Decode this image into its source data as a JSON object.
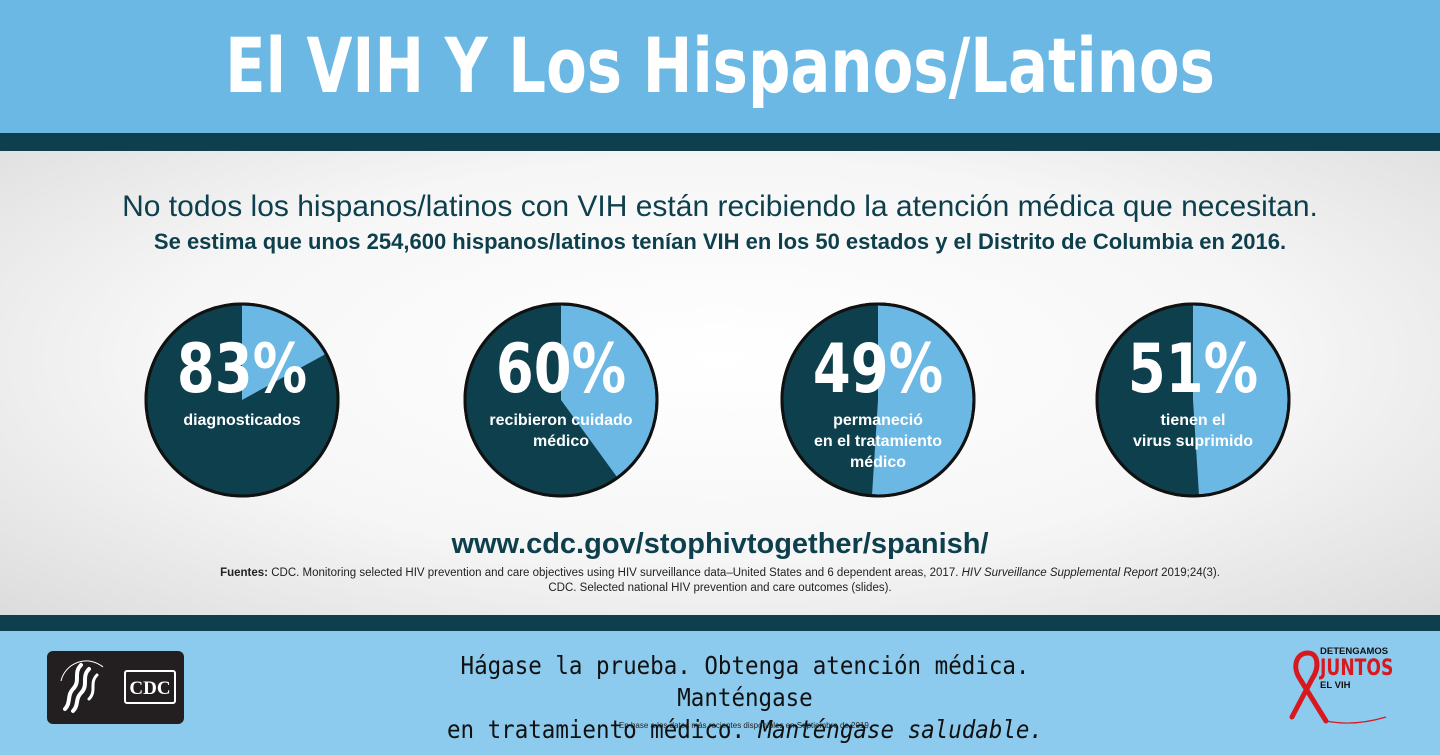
{
  "header": {
    "title": "El VIH Y Los Hispanos/Latinos"
  },
  "intro": {
    "line1": "No todos los hispanos/latinos con VIH están recibiendo la atención médica que necesitan.",
    "line2": "Se estima que unos 254,600 hispanos/latinos tenían VIH en los 50 estados y el Distrito de Columbia en 2016."
  },
  "stats": [
    {
      "percent": 83,
      "label": "83%",
      "desc": [
        "diagnosticados"
      ]
    },
    {
      "percent": 60,
      "label": "60%",
      "desc": [
        "recibieron cuidado",
        "médico"
      ]
    },
    {
      "percent": 49,
      "label": "49%",
      "desc": [
        "permaneció",
        "en el tratamiento",
        "médico"
      ]
    },
    {
      "percent": 51,
      "label": "51%",
      "desc": [
        "tienen el",
        "virus suprimido"
      ]
    }
  ],
  "colors": {
    "dark": "#0d3f4d",
    "light": "#6bb8e4",
    "footer": "#8ccbee",
    "red": "#d7191f"
  },
  "url": "www.cdc.gov/stophivtogether/spanish/",
  "sources": {
    "label": "Fuentes:",
    "line1_pre": "CDC. Monitoring selected HIV prevention and care objectives using HIV surveillance data–United States and 6 dependent areas, 2017.",
    "line1_italic": "HIV Surveillance Supplemental Report",
    "line1_post": "2019;24(3).",
    "line2": "CDC. Selected national HIV prevention and care outcomes (slides)."
  },
  "footer": {
    "slogan_line1": "Hágase la prueba. Obtenga atención médica. Manténgase",
    "slogan_line2_plain": "en tratamiento médico.",
    "slogan_line2_italic": "Manténgase saludable.",
    "footnote": "En base a los datos más recientes disponibles en Septiembre de 2019.",
    "cdc_logo": "CDC",
    "hhs_seal": "DEPARTMENT OF HEALTH & HUMAN SERVICES USA",
    "campaign": [
      "DETENGAMOS",
      "JUNTOS",
      "EL VIH"
    ]
  }
}
